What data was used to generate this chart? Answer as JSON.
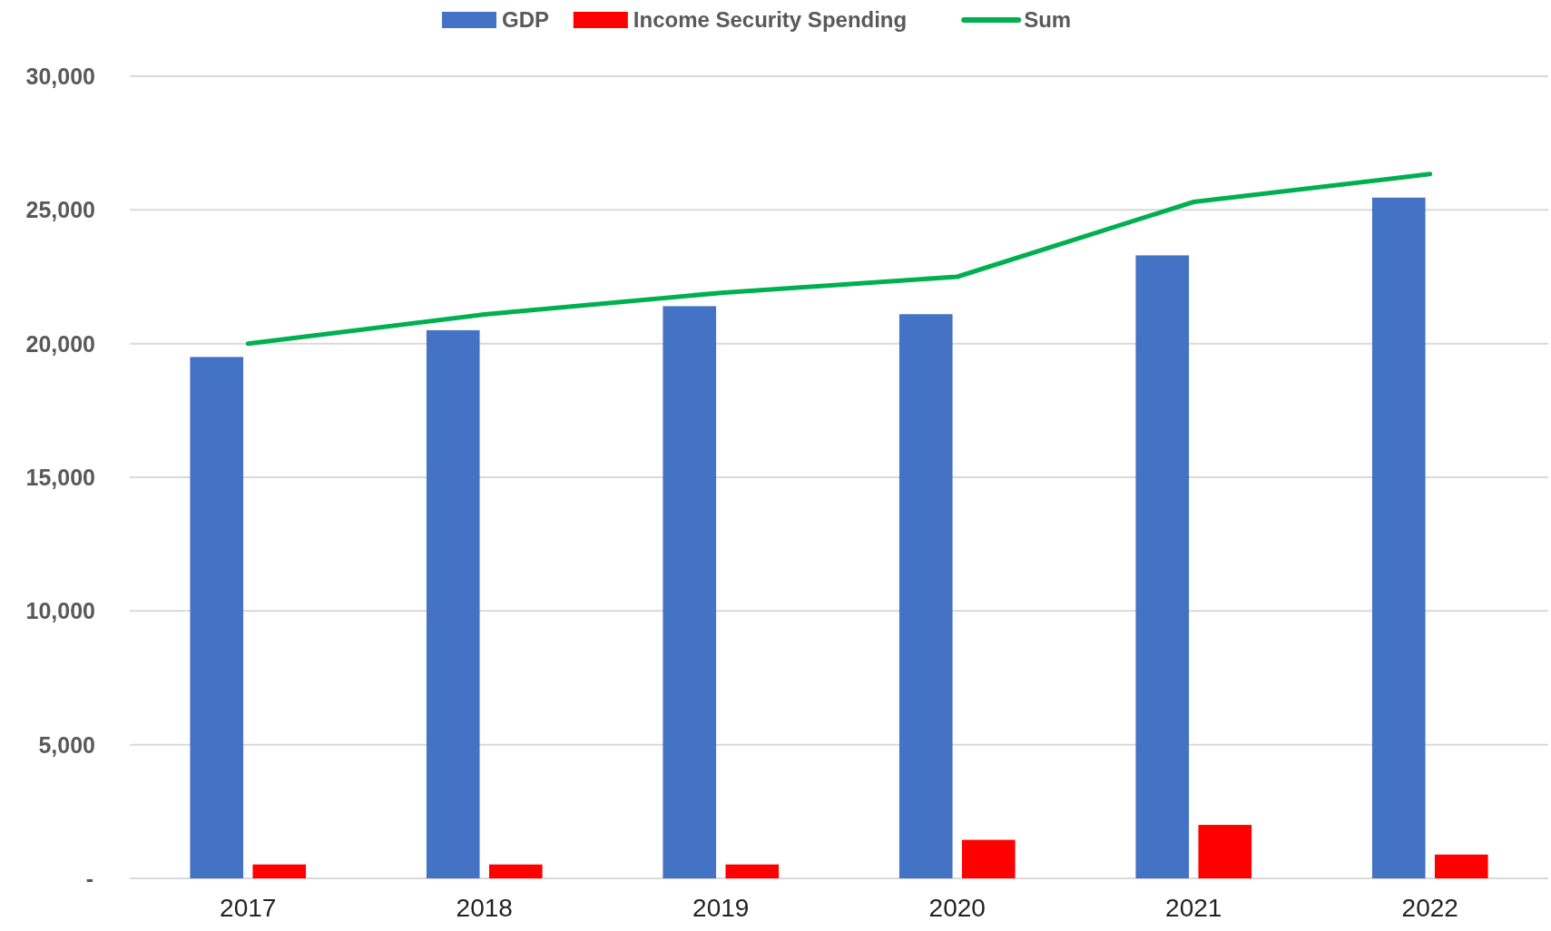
{
  "chart_data": {
    "type": "bar",
    "categories": [
      "2017",
      "2018",
      "2019",
      "2020",
      "2021",
      "2022"
    ],
    "series": [
      {
        "name": "GDP",
        "color": "#4472c4",
        "values": [
          19500,
          20500,
          21400,
          21100,
          23300,
          25460
        ]
      },
      {
        "name": "Income Security Spending",
        "color": "#ff0000",
        "values": [
          520,
          520,
          520,
          1440,
          2000,
          890
        ]
      },
      {
        "name": "Sum",
        "type": "line",
        "color": "#00b050",
        "values": [
          20000,
          21090,
          21900,
          22500,
          25300,
          26340
        ]
      }
    ],
    "ylim": [
      0,
      30000
    ],
    "yticks": [
      {
        "value": 0,
        "label": "-"
      },
      {
        "value": 5000,
        "label": "5,000"
      },
      {
        "value": 10000,
        "label": "10,000"
      },
      {
        "value": 15000,
        "label": "15,000"
      },
      {
        "value": 20000,
        "label": "20,000"
      },
      {
        "value": 25000,
        "label": "25,000"
      },
      {
        "value": 30000,
        "label": "30,000"
      }
    ],
    "grid": "y",
    "legend": "top"
  }
}
